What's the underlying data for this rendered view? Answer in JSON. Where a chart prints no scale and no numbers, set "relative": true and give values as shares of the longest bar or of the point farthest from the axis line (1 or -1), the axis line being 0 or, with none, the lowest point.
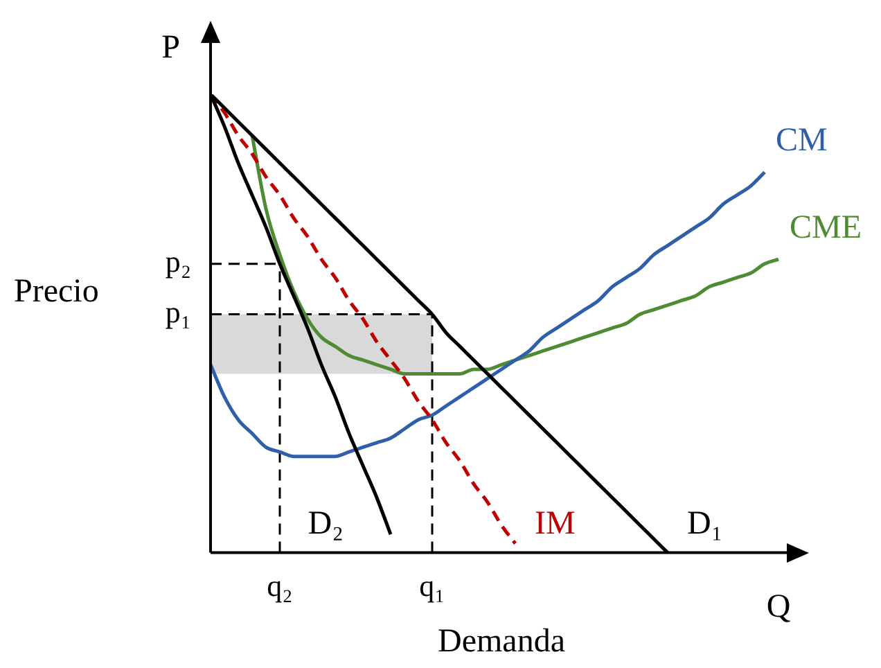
{
  "chart_data": {
    "type": "line",
    "relative": true,
    "xlabel": "Demanda",
    "ylabel": "Precio",
    "annotations": [
      "P",
      "Q"
    ],
    "categories": [
      null,
      null,
      null,
      null,
      null,
      "q₂",
      null,
      null,
      null,
      null,
      null,
      null,
      null,
      null,
      null,
      null,
      "q₁",
      null,
      null,
      null,
      null,
      null,
      null,
      null,
      null,
      null,
      null,
      null,
      null,
      null,
      null,
      null,
      null,
      null,
      null,
      null,
      null,
      null,
      null,
      null,
      null,
      null,
      null
    ],
    "series": [
      {
        "name": "D₁",
        "color": "#000000",
        "values": [
          1,
          0.97,
          0.94,
          0.91,
          0.88,
          0.85,
          0.82,
          0.79,
          0.76,
          0.73,
          0.7,
          0.67,
          0.64,
          0.61,
          0.58,
          0.55,
          0.52,
          0.48,
          0.45,
          0.42,
          0.39,
          0.36,
          0.33,
          0.3,
          0.27,
          0.24,
          0.21,
          0.18,
          0.15,
          0.12,
          0.09,
          0.06,
          0.03,
          0,
          null,
          null,
          null,
          null,
          null,
          null,
          null,
          null,
          null
        ]
      },
      {
        "name": "D₂",
        "color": "#000000",
        "values": [
          1,
          0.93,
          0.85,
          0.78,
          0.71,
          0.63,
          0.56,
          0.49,
          0.41,
          0.34,
          0.26,
          0.19,
          0.12,
          0.04,
          null,
          null,
          null,
          null,
          null,
          null,
          null,
          null,
          null,
          null,
          null,
          null,
          null,
          null,
          null,
          null,
          null,
          null,
          null,
          null,
          null,
          null,
          null,
          null,
          null,
          null,
          null,
          null,
          null
        ]
      },
      {
        "name": "IM",
        "color": "#c00000",
        "line_style": "dashed",
        "values": [
          1,
          0.96,
          0.91,
          0.87,
          0.82,
          0.78,
          0.73,
          0.69,
          0.64,
          0.6,
          0.55,
          0.51,
          0.46,
          0.42,
          0.38,
          0.33,
          0.29,
          0.24,
          0.2,
          0.15,
          0.11,
          0.06,
          0.02,
          null,
          null,
          null,
          null,
          null,
          null,
          null,
          null,
          null,
          null,
          null,
          null,
          null,
          null,
          null,
          null,
          null,
          null,
          null,
          null
        ]
      },
      {
        "name": "CM",
        "color": "#2e5fa8",
        "values": [
          0.41,
          0.34,
          0.29,
          0.26,
          0.23,
          0.22,
          0.21,
          0.21,
          0.21,
          0.21,
          0.22,
          0.23,
          0.24,
          0.25,
          0.27,
          0.29,
          0.3,
          0.32,
          0.34,
          0.36,
          0.38,
          0.4,
          0.42,
          0.44,
          0.47,
          0.49,
          0.51,
          0.53,
          0.55,
          0.58,
          0.6,
          0.62,
          0.65,
          0.67,
          0.69,
          0.71,
          0.73,
          0.76,
          0.78,
          0.8,
          0.83,
          null,
          null
        ]
      },
      {
        "name": "CME",
        "color": "#4f8a35",
        "values": [
          null,
          null,
          null,
          0.91,
          0.75,
          0.65,
          0.57,
          0.51,
          0.47,
          0.45,
          0.43,
          0.42,
          0.41,
          0.4,
          0.39,
          0.39,
          0.39,
          0.39,
          0.39,
          0.4,
          0.4,
          0.41,
          0.42,
          0.43,
          0.44,
          0.45,
          0.46,
          0.47,
          0.48,
          0.49,
          0.5,
          0.52,
          0.53,
          0.54,
          0.55,
          0.56,
          0.58,
          0.59,
          0.6,
          0.61,
          0.63,
          0.64,
          null
        ]
      }
    ],
    "ref_lines": [
      {
        "axis": "y",
        "value": 0.63,
        "label": "p₂",
        "line_style": "dashed"
      },
      {
        "axis": "y",
        "value": 0.52,
        "label": "p₁",
        "line_style": "dashed"
      },
      {
        "axis": "x",
        "value": "q₂",
        "line_style": "dashed"
      },
      {
        "axis": "x",
        "value": "q₁",
        "line_style": "dashed"
      }
    ],
    "bands": [
      {
        "axis": "y",
        "from": 0.39,
        "to": 0.52,
        "color": "#d9d9d9"
      }
    ],
    "grid": false,
    "legend": false,
    "marker": "none"
  }
}
